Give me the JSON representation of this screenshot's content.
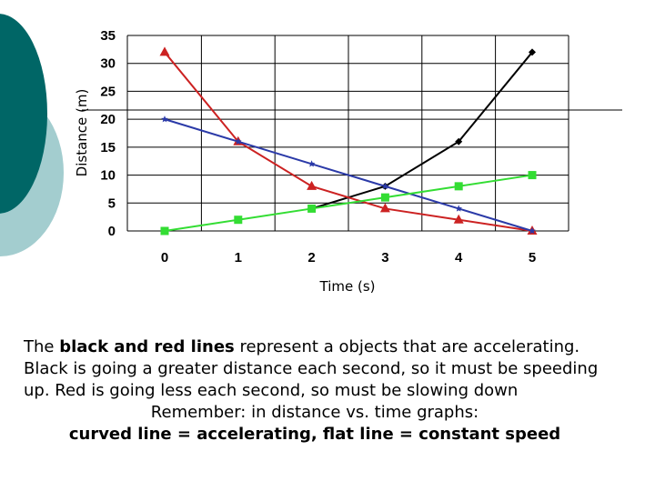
{
  "colors": {
    "teal_dark": "#006666",
    "teal_light": "#a3cdcf"
  },
  "chart_data": {
    "type": "line",
    "xlabel": "Time (s)",
    "ylabel": "Distance (m)",
    "x": [
      0,
      1,
      2,
      3,
      4,
      5
    ],
    "xlim": [
      0,
      5
    ],
    "ylim": [
      0,
      35
    ],
    "yticks": [
      0,
      5,
      10,
      15,
      20,
      25,
      30,
      35
    ],
    "grid": true,
    "legend": "none",
    "series": [
      {
        "color": "#000000",
        "marker": "diamond",
        "x": [
          2,
          3,
          4,
          5
        ],
        "values": [
          4,
          8,
          16,
          32
        ]
      },
      {
        "color": "#cc2222",
        "marker": "triangle",
        "x": [
          0,
          1,
          2,
          3,
          4,
          5
        ],
        "values": [
          32,
          16,
          8,
          4,
          2,
          0
        ]
      },
      {
        "color": "#2b3aa8",
        "marker": "star",
        "x": [
          0,
          1,
          2,
          3,
          4,
          5
        ],
        "values": [
          20,
          16,
          12,
          8,
          4,
          0
        ]
      },
      {
        "color": "#33dd33",
        "marker": "square",
        "x": [
          0,
          1,
          2,
          3,
          4,
          5
        ],
        "values": [
          0,
          2,
          4,
          6,
          8,
          10
        ]
      }
    ]
  },
  "caption": {
    "l1_a": "The ",
    "l1_b": "black and red lines",
    "l1_c": " represent a objects that are accelerating. Black is going a greater distance each second, so it must be speeding up. Red is going less each second, so must be slowing down",
    "l2": "Remember: in distance vs. time graphs:",
    "l3": "curved line = accelerating, flat line = constant speed"
  }
}
